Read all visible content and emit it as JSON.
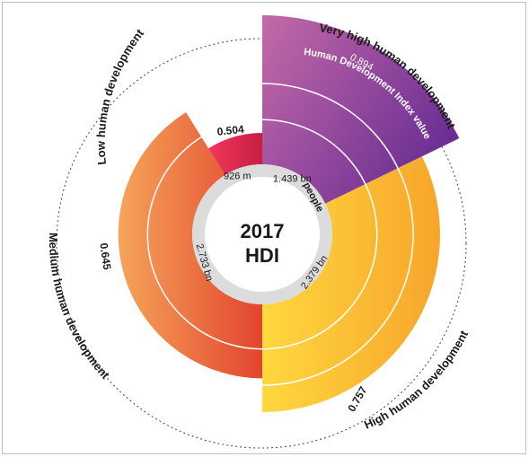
{
  "chart_data": {
    "type": "radial_bar",
    "center_title": [
      "2017",
      "HDI"
    ],
    "radial_axis_label": "Human Development Index value",
    "population_unit_label": "people",
    "colors": {
      "very_high": [
        "#c46aa8",
        "#6a2e93"
      ],
      "high": [
        "#ffd840",
        "#f7a52a"
      ],
      "medium": [
        "#f6a45a",
        "#e2452e"
      ],
      "low": [
        "#f0365a",
        "#c81e44"
      ]
    },
    "groups": [
      {
        "key": "very_high",
        "name": "Very high human development",
        "hdi": 0.894,
        "hdi_label": "0.894",
        "population_label": "1.439 bn"
      },
      {
        "key": "high",
        "name": "High human development",
        "hdi": 0.757,
        "hdi_label": "0.757",
        "population_label": "2.379 bn"
      },
      {
        "key": "medium",
        "name": "Medium human development",
        "hdi": 0.645,
        "hdi_label": "0.645",
        "population_label": "2.733 bn"
      },
      {
        "key": "low",
        "name": "Low human development",
        "hdi": 0.504,
        "hdi_label": "0.504",
        "population_label": "926 m"
      }
    ]
  }
}
